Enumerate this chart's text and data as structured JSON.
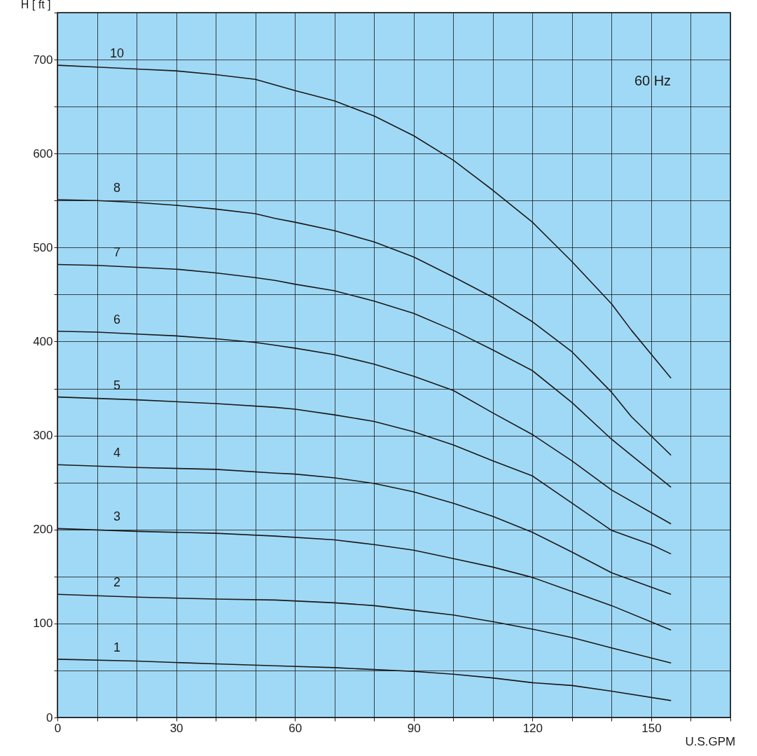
{
  "chart_data": {
    "type": "line",
    "xlabel": "U.S.GPM",
    "ylabel": "H [ ft ]",
    "xlim": [
      0,
      170
    ],
    "ylim": [
      0,
      750
    ],
    "xticks": [
      0,
      {
        "value": 10,
        "label": null
      },
      {
        "value": 20,
        "label": null
      },
      30,
      {
        "value": 40,
        "label": null
      },
      {
        "value": 50,
        "label": null
      },
      60,
      {
        "value": 70,
        "label": null
      },
      {
        "value": 80,
        "label": null
      },
      90,
      {
        "value": 100,
        "label": null
      },
      {
        "value": 110,
        "label": null
      },
      120,
      {
        "value": 130,
        "label": null
      },
      {
        "value": 140,
        "label": null
      },
      150,
      {
        "value": 160,
        "label": null
      },
      {
        "value": 170,
        "label": null
      }
    ],
    "yticks": [
      0,
      {
        "value": 50,
        "label": null
      },
      100,
      {
        "value": 150,
        "label": null
      },
      200,
      {
        "value": 250,
        "label": null
      },
      300,
      {
        "value": 350,
        "label": null
      },
      400,
      {
        "value": 450,
        "label": null
      },
      500,
      {
        "value": 550,
        "label": null
      },
      600,
      {
        "value": 650,
        "label": null
      },
      700,
      {
        "value": 750,
        "label": null
      }
    ],
    "grid": true,
    "marker": "none",
    "line_style": "solid",
    "annotations": [
      "60 Hz"
    ],
    "series": [
      {
        "name": "10",
        "color": "#1a1a1a",
        "x": [
          0,
          10,
          20,
          30,
          40,
          50,
          55,
          60,
          70,
          80,
          90,
          100,
          110,
          120,
          130,
          140,
          145,
          155
        ],
        "values": [
          694,
          692,
          690,
          688,
          684,
          679,
          673,
          667,
          656,
          640,
          619,
          593,
          561,
          527,
          485,
          440,
          412,
          361
        ]
      },
      {
        "name": "8",
        "color": "#1a1a1a",
        "x": [
          0,
          10,
          20,
          30,
          40,
          50,
          55,
          60,
          70,
          80,
          90,
          100,
          110,
          120,
          130,
          140,
          145,
          155
        ],
        "values": [
          551,
          550,
          548,
          545,
          541,
          536,
          531,
          527,
          518,
          506,
          490,
          469,
          447,
          421,
          389,
          346,
          320,
          279
        ]
      },
      {
        "name": "7",
        "color": "#1a1a1a",
        "x": [
          0,
          10,
          20,
          30,
          40,
          50,
          55,
          60,
          70,
          80,
          90,
          100,
          110,
          120,
          130,
          140,
          145,
          155
        ],
        "values": [
          482,
          481,
          479,
          477,
          473,
          468,
          465,
          461,
          454,
          443,
          430,
          412,
          391,
          369,
          335,
          296,
          279,
          245
        ]
      },
      {
        "name": "6",
        "color": "#1a1a1a",
        "x": [
          0,
          10,
          20,
          30,
          40,
          50,
          55,
          60,
          70,
          80,
          90,
          100,
          110,
          120,
          130,
          140,
          155
        ],
        "values": [
          411,
          410,
          408,
          406,
          403,
          399,
          396,
          393,
          386,
          376,
          363,
          348,
          324,
          301,
          273,
          242,
          206
        ]
      },
      {
        "name": "5",
        "color": "#1a1a1a",
        "x": [
          0,
          20,
          40,
          55,
          60,
          70,
          80,
          90,
          100,
          110,
          120,
          130,
          140,
          150,
          155
        ],
        "values": [
          341,
          338,
          334,
          330,
          328,
          322,
          315,
          304,
          290,
          273,
          257,
          228,
          199,
          184,
          174
        ]
      },
      {
        "name": "4",
        "color": "#1a1a1a",
        "x": [
          0,
          20,
          40,
          55,
          60,
          70,
          80,
          90,
          100,
          110,
          120,
          130,
          140,
          155
        ],
        "values": [
          269,
          266,
          264,
          260,
          259,
          255,
          249,
          240,
          228,
          214,
          197,
          176,
          154,
          131
        ]
      },
      {
        "name": "3",
        "color": "#1a1a1a",
        "x": [
          0,
          20,
          40,
          55,
          70,
          80,
          90,
          100,
          110,
          120,
          130,
          140,
          155
        ],
        "values": [
          201,
          198,
          196,
          193,
          189,
          184,
          178,
          169,
          160,
          149,
          134,
          119,
          93
        ]
      },
      {
        "name": "2",
        "color": "#1a1a1a",
        "x": [
          0,
          20,
          40,
          55,
          70,
          80,
          90,
          100,
          110,
          120,
          130,
          140,
          155
        ],
        "values": [
          131,
          128,
          126,
          125,
          122,
          119,
          114,
          109,
          102,
          94,
          85,
          74,
          58
        ]
      },
      {
        "name": "1",
        "color": "#1a1a1a",
        "x": [
          0,
          20,
          40,
          55,
          70,
          80,
          90,
          100,
          110,
          120,
          130,
          140,
          155
        ],
        "values": [
          62,
          60,
          57,
          55,
          53,
          51,
          49,
          46,
          42,
          37,
          34,
          28,
          18
        ]
      }
    ]
  }
}
